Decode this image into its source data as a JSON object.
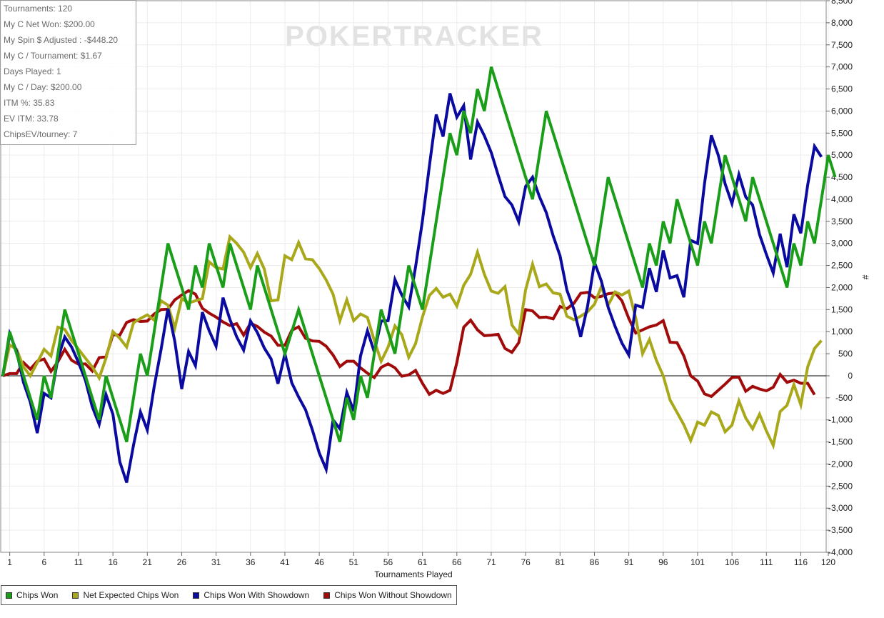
{
  "stats": [
    "Tournaments: 120",
    "My C Net Won: $200.00",
    "My Spin $ Adjusted : -$448.20",
    "My C / Tournament: $1.67",
    "Days Played: 1",
    "My C / Day: $200.00",
    "ITM %: 35.83",
    "EV ITM: 33.78",
    "ChipsEV/tourney: 7"
  ],
  "watermark": "POKERTRACKER",
  "legend": [
    {
      "name": "Chips Won",
      "color": "#1a9e1a"
    },
    {
      "name": "Net Expected Chips Won",
      "color": "#a8a81a"
    },
    {
      "name": "Chips Won With Showdown",
      "color": "#0a0aa0"
    },
    {
      "name": "Chips Won Without Showdown",
      "color": "#a00a0a"
    }
  ],
  "chart_data": {
    "type": "line",
    "xlabel": "Tournaments Played",
    "ylabel": "#",
    "xlim": [
      0,
      120
    ],
    "ylim": [
      -4000,
      8500
    ],
    "x_ticks": [
      1,
      6,
      11,
      16,
      21,
      26,
      31,
      36,
      41,
      46,
      51,
      56,
      61,
      66,
      71,
      76,
      81,
      86,
      91,
      96,
      101,
      106,
      111,
      116,
      120
    ],
    "y_ticks": [
      -4000,
      -3500,
      -3000,
      -2500,
      -2000,
      -1500,
      -1000,
      -500,
      0,
      500,
      1000,
      1500,
      2000,
      2500,
      3000,
      3500,
      4000,
      4500,
      5000,
      5500,
      6000,
      6500,
      7000,
      7500,
      8000,
      8500
    ],
    "y_tick_labels": [
      "-4,000",
      "-3,500",
      "-3,000",
      "-2,500",
      "-2,000",
      "-1,500",
      "-1,000",
      "-500",
      "0",
      "500",
      "1,000",
      "1,500",
      "2,000",
      "2,500",
      "3,000",
      "3,500",
      "4,000",
      "4,500",
      "5,000",
      "5,500",
      "6,000",
      "6,500",
      "7,000",
      "7,500",
      "8,000",
      "8,500"
    ],
    "grid": true,
    "legend_position": "bottom-left",
    "series": [
      {
        "name": "Chips Won",
        "color": "#1a9e1a",
        "values": [
          0,
          1000,
          500,
          0,
          -500,
          -1000,
          0,
          -500,
          500,
          1500,
          1000,
          500,
          0,
          -500,
          -1000,
          0,
          -500,
          -1000,
          -1500,
          -500,
          500,
          0,
          1000,
          2000,
          3000,
          2500,
          2000,
          1500,
          2500,
          2000,
          3000,
          2500,
          2000,
          3000,
          2500,
          2000,
          1500,
          2500,
          2000,
          1500,
          1000,
          500,
          1000,
          1500,
          1000,
          500,
          0,
          -500,
          -1000,
          -1500,
          -500,
          -1000,
          0,
          -500,
          500,
          1500,
          1000,
          500,
          1500,
          2500,
          2000,
          1500,
          2500,
          3500,
          4500,
          5500,
          5000,
          6000,
          5500,
          6500,
          6000,
          7000,
          6500,
          6000,
          5500,
          5000,
          4500,
          4000,
          5000,
          6000,
          5500,
          5000,
          4500,
          4000,
          3500,
          3000,
          2500,
          3500,
          4500,
          4000,
          3500,
          3000,
          2500,
          2000,
          3000,
          2500,
          3500,
          3000,
          4000,
          3500,
          3000,
          2500,
          3500,
          3000,
          4000,
          5000,
          4500,
          4000,
          3500,
          4500,
          4000,
          3500,
          3000,
          2500,
          2000,
          3000,
          2500,
          3500,
          3000,
          4000,
          5000,
          4500
        ]
      },
      {
        "name": "Net Expected Chips Won",
        "color": "#a8a81a",
        "values": [
          0,
          700,
          600,
          200,
          0,
          300,
          600,
          450,
          1100,
          1050,
          800,
          600,
          400,
          200,
          -50,
          400,
          1000,
          850,
          650,
          1200,
          1300,
          1380,
          1260,
          1700,
          1600,
          1080,
          1750,
          1650,
          1700,
          1750,
          2580,
          2450,
          2420,
          3150,
          3000,
          2800,
          2450,
          2770,
          2420,
          1700,
          1720,
          2720,
          2630,
          3020,
          2650,
          2630,
          2430,
          2170,
          1850,
          1250,
          1720,
          1250,
          1400,
          1320,
          800,
          330,
          650,
          1130,
          930,
          420,
          730,
          1330,
          1820,
          1980,
          1780,
          1850,
          1580,
          2050,
          2300,
          2800,
          2300,
          1920,
          1870,
          2020,
          1150,
          950,
          1950,
          2530,
          2020,
          2080,
          1880,
          1850,
          1350,
          1270,
          1350,
          1450,
          1620,
          2020,
          1600,
          1900,
          1830,
          1920,
          1310,
          500,
          820,
          350,
          0,
          -550,
          -830,
          -1110,
          -1470,
          -1050,
          -1120,
          -820,
          -900,
          -1270,
          -1120,
          -570,
          -960,
          -1200,
          -870,
          -1250,
          -1580,
          -810,
          -670,
          -200,
          -660,
          200,
          620,
          800
        ]
      },
      {
        "name": "Chips Won With Showdown",
        "color": "#0a0aa0",
        "values": [
          0,
          950,
          550,
          -150,
          -600,
          -1300,
          -400,
          -500,
          400,
          880,
          650,
          300,
          -100,
          -700,
          -1100,
          -430,
          -870,
          -1950,
          -2420,
          -1570,
          -820,
          -1230,
          -250,
          600,
          1520,
          780,
          -300,
          550,
          230,
          1440,
          1020,
          670,
          1770,
          1280,
          880,
          580,
          1240,
          980,
          630,
          380,
          -180,
          500,
          -160,
          -480,
          -770,
          -1230,
          -1750,
          -2120,
          -1000,
          -1200,
          -380,
          -800,
          450,
          1020,
          540,
          1240,
          1250,
          2180,
          1830,
          1560,
          2470,
          3510,
          4750,
          5920,
          5420,
          6400,
          5860,
          6120,
          4900,
          5750,
          5440,
          5060,
          4550,
          4060,
          3870,
          3490,
          4290,
          4500,
          4060,
          3700,
          3170,
          2720,
          1940,
          1510,
          880,
          1570,
          2570,
          2150,
          1550,
          1120,
          740,
          470,
          1600,
          1550,
          2440,
          1900,
          2840,
          2220,
          2270,
          1780,
          3070,
          3000,
          4350,
          5450,
          5000,
          4350,
          3900,
          4560,
          4050,
          3870,
          3200,
          2750,
          2330,
          3220,
          2460,
          3660,
          3230,
          4320,
          5200,
          4960
        ]
      },
      {
        "name": "Chips Won Without Showdown",
        "color": "#a00a0a",
        "values": [
          0,
          50,
          50,
          300,
          150,
          330,
          380,
          100,
          320,
          600,
          350,
          260,
          270,
          110,
          410,
          430,
          930,
          920,
          1210,
          1270,
          1230,
          1240,
          1400,
          1500,
          1510,
          1720,
          1830,
          1930,
          1850,
          1530,
          1420,
          1330,
          1220,
          1140,
          1180,
          920,
          1190,
          1120,
          990,
          900,
          690,
          690,
          1030,
          1110,
          850,
          790,
          780,
          670,
          470,
          210,
          330,
          330,
          180,
          60,
          -40,
          190,
          270,
          180,
          -10,
          20,
          120,
          -170,
          -420,
          -330,
          -400,
          -330,
          300,
          1100,
          1260,
          1040,
          910,
          920,
          940,
          620,
          530,
          750,
          1500,
          1470,
          1320,
          1330,
          1290,
          1570,
          1520,
          1640,
          1870,
          1890,
          1770,
          1800,
          1860,
          1880,
          1700,
          1300,
          970,
          1040,
          1110,
          1150,
          1250,
          760,
          750,
          450,
          0,
          -120,
          -410,
          -470,
          -330,
          -190,
          -40,
          -30,
          -350,
          -240,
          -300,
          -340,
          -260,
          30,
          -150,
          -100,
          -170,
          -170,
          -430
        ]
      }
    ]
  }
}
